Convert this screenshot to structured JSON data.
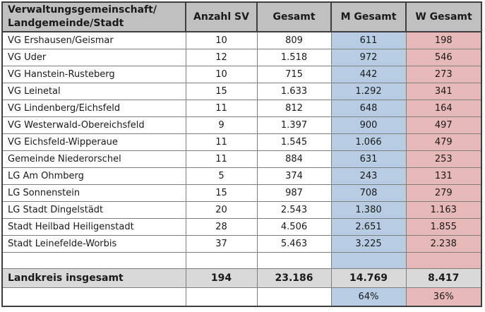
{
  "table": {
    "header": {
      "col1_line1": "Verwaltungsgemeinschaft/",
      "col1_line2": "Landgemeinde/Stadt",
      "col2": "Anzahl SV",
      "col3": "Gesamt",
      "col4": "M Gesamt",
      "col5": "W Gesamt"
    },
    "rows": [
      {
        "name": "VG Ershausen/Geismar",
        "anzahl_sv": "10",
        "gesamt": "809",
        "m_gesamt": "611",
        "w_gesamt": "198"
      },
      {
        "name": "VG Uder",
        "anzahl_sv": "12",
        "gesamt": "1.518",
        "m_gesamt": "972",
        "w_gesamt": "546"
      },
      {
        "name": "VG Hanstein-Rusteberg",
        "anzahl_sv": "10",
        "gesamt": "715",
        "m_gesamt": "442",
        "w_gesamt": "273"
      },
      {
        "name": "VG Leinetal",
        "anzahl_sv": "15",
        "gesamt": "1.633",
        "m_gesamt": "1.292",
        "w_gesamt": "341"
      },
      {
        "name": "VG Lindenberg/Eichsfeld",
        "anzahl_sv": "11",
        "gesamt": "812",
        "m_gesamt": "648",
        "w_gesamt": "164"
      },
      {
        "name": "VG Westerwald-Obereichsfeld",
        "anzahl_sv": "9",
        "gesamt": "1.397",
        "m_gesamt": "900",
        "w_gesamt": "497"
      },
      {
        "name": "VG Eichsfeld-Wipperaue",
        "anzahl_sv": "11",
        "gesamt": "1.545",
        "m_gesamt": "1.066",
        "w_gesamt": "479"
      },
      {
        "name": "Gemeinde Niederorschel",
        "anzahl_sv": "11",
        "gesamt": "884",
        "m_gesamt": "631",
        "w_gesamt": "253"
      },
      {
        "name": "LG Am Ohmberg",
        "anzahl_sv": "5",
        "gesamt": "374",
        "m_gesamt": "243",
        "w_gesamt": "131"
      },
      {
        "name": "LG Sonnenstein",
        "anzahl_sv": "15",
        "gesamt": "987",
        "m_gesamt": "708",
        "w_gesamt": "279"
      },
      {
        "name": "LG Stadt Dingelstädt",
        "anzahl_sv": "20",
        "gesamt": "2.543",
        "m_gesamt": "1.380",
        "w_gesamt": "1.163"
      },
      {
        "name": "Stadt Heilbad Heiligenstadt",
        "anzahl_sv": "28",
        "gesamt": "4.506",
        "m_gesamt": "2.651",
        "w_gesamt": "1.855"
      },
      {
        "name": "Stadt Leinefelde-Worbis",
        "anzahl_sv": "37",
        "gesamt": "5.463",
        "m_gesamt": "3.225",
        "w_gesamt": "2.238"
      }
    ],
    "total_row": {
      "name": "Landkreis insgesamt",
      "anzahl_sv": "194",
      "gesamt": "23.186",
      "m_gesamt": "14.769",
      "w_gesamt": "8.417"
    },
    "percent_row": {
      "m_gesamt": "64%",
      "w_gesamt": "36%"
    },
    "colors": {
      "header_bg": "#c0c0c0",
      "total_bg": "#d9d9d9",
      "male_bg": "#b8cce4",
      "female_bg": "#e6b9b8",
      "border_inner": "#7f7f7f",
      "border_outer": "#3f3f3f"
    }
  }
}
